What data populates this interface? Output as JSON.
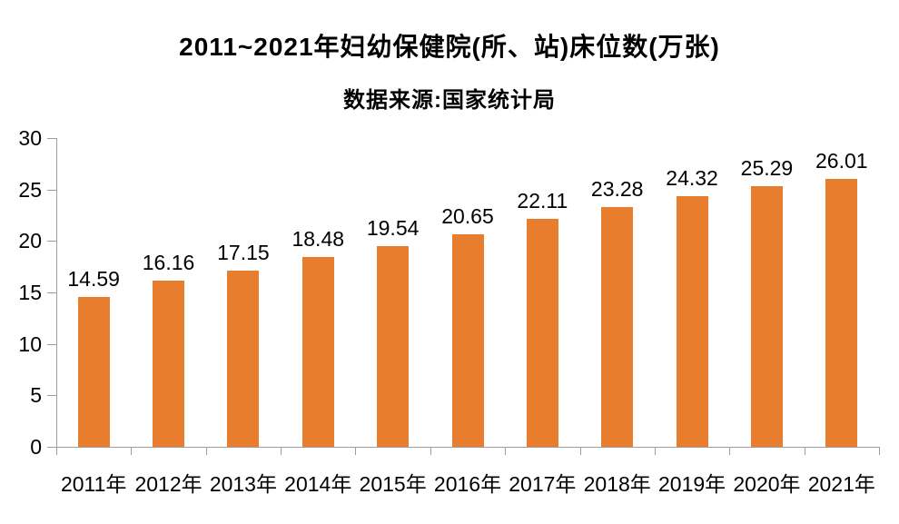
{
  "title": "2011~2021年妇幼保健院(所、站)床位数(万张)",
  "subtitle": "数据来源:国家统计局",
  "chart_data": {
    "type": "bar",
    "title": "2011~2021年妇幼保健院(所、站)床位数(万张)",
    "subtitle": "数据来源:国家统计局",
    "categories": [
      "2011年",
      "2012年",
      "2013年",
      "2014年",
      "2015年",
      "2016年",
      "2017年",
      "2018年",
      "2019年",
      "2020年",
      "2021年"
    ],
    "values": [
      14.59,
      16.16,
      17.15,
      18.48,
      19.54,
      20.65,
      22.11,
      23.28,
      24.32,
      25.29,
      26.01
    ],
    "value_labels": [
      "14.59",
      "16.16",
      "17.15",
      "18.48",
      "19.54",
      "20.65",
      "22.11",
      "23.28",
      "24.32",
      "25.29",
      "26.01"
    ],
    "xlabel": "",
    "ylabel": "",
    "ylim": [
      0,
      30
    ],
    "yticks": [
      0,
      5,
      10,
      15,
      20,
      25,
      30
    ],
    "grid": false,
    "legend_position": "none",
    "bar_color": "#E87E2D",
    "axis_color": "#9D9D9D",
    "text_color": "#000000"
  }
}
